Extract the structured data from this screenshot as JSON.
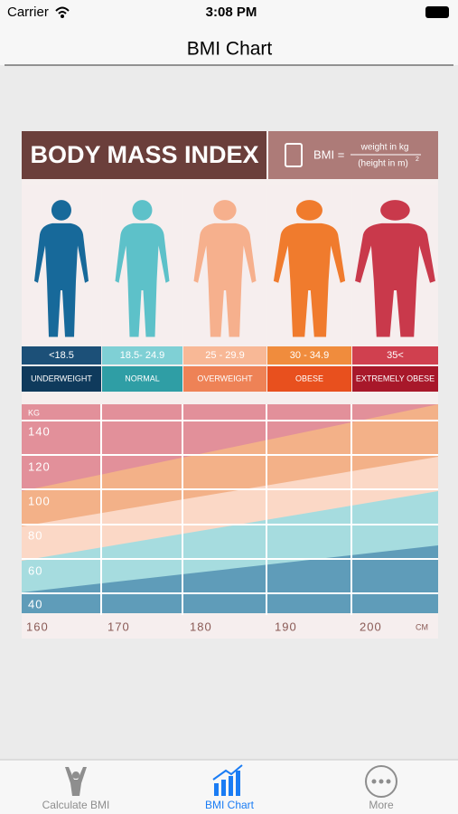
{
  "status_bar": {
    "carrier": "Carrier",
    "time": "3:08 PM"
  },
  "nav_bar": {
    "title": "BMI Chart"
  },
  "infographic": {
    "title": "BODY MASS INDEX",
    "formula": {
      "lhs": "BMI =",
      "numerator": "weight in kg",
      "denominator": "(height in m)",
      "exponent": "2"
    },
    "categories": [
      {
        "range": "<18.5",
        "label": "UNDERWEIGHT"
      },
      {
        "range": "18.5- 24.9",
        "label": "NORMAL"
      },
      {
        "range": "25 - 29.9",
        "label": "OVERWEIGHT"
      },
      {
        "range": "30 - 34.9",
        "label": "OBESE"
      },
      {
        "range": "35<",
        "label": "EXTREMELY OBESE"
      }
    ],
    "weight_axis": {
      "unit": "KG",
      "labels": [
        "140",
        "120",
        "100",
        "80",
        "60",
        "40"
      ]
    },
    "height_axis": {
      "labels": [
        "160",
        "170",
        "180",
        "190",
        "200"
      ],
      "unit": "CM"
    }
  },
  "tab_bar": {
    "items": [
      "Calculate BMI",
      "BMI Chart",
      "More"
    ]
  }
}
